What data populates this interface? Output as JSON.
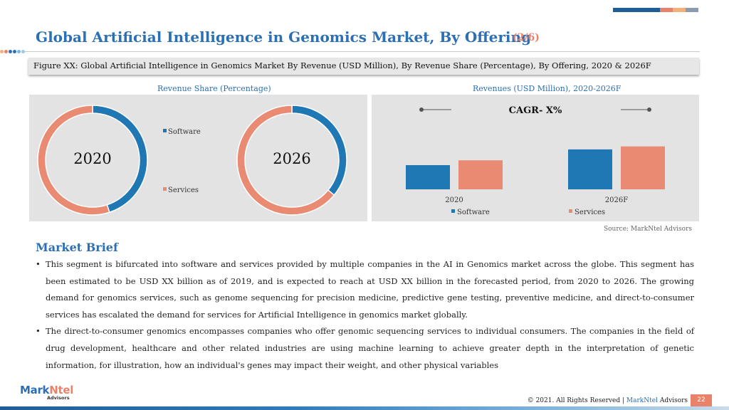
{
  "header": {
    "title": "Global Artificial Intelligence in Genomics Market, By Offering",
    "page_count": "(2/6)"
  },
  "colors": {
    "accent_blue": "#2c6fb3",
    "software": "#1f77b4",
    "services": "#e98a73",
    "panel_bg": "#e3e3e3",
    "top_bars": [
      "#1f5d99",
      "#e9826b",
      "#f3b07b",
      "#8a9bb0"
    ]
  },
  "figure_caption": "Figure XX: Global Artificial Intelligence in Genomics Market By Revenue (USD Million), By Revenue Share (Percentage), By Offering, 2020 & 2026F",
  "left_panel_title": "Revenue Share (Percentage)",
  "right_panel_title": "Revenues (USD Million), 2020-2026F",
  "chart_data": [
    {
      "type": "pie",
      "variant": "donut",
      "center_label": "2020",
      "labels": [
        "Software",
        "Services"
      ],
      "values": [
        45,
        55
      ],
      "legend_placement": "right"
    },
    {
      "type": "pie",
      "variant": "donut",
      "center_label": "2026",
      "labels": [
        "Software",
        "Services"
      ],
      "values": [
        36,
        64
      ]
    },
    {
      "type": "bar",
      "title": "CAGR- X%",
      "categories": [
        "2020",
        "2026F"
      ],
      "series": [
        {
          "name": "Software",
          "values": [
            40,
            66
          ]
        },
        {
          "name": "Services",
          "values": [
            48,
            71
          ]
        }
      ],
      "ylim": [
        0,
        100
      ],
      "grid": false,
      "legend_placement": "bottom"
    }
  ],
  "source": "Source: MarkNtel Advisors",
  "market_brief": {
    "heading": "Market Brief",
    "bullets": [
      "This segment is bifurcated into software and services provided by multiple companies in the AI in Genomics market across the globe. This segment has been estimated to be USD XX billion as of 2019, and is expected to reach at USD XX billion in the forecasted period, from 2020 to 2026. The growing demand for genomics services, such as genome sequencing for precision medicine, predictive gene testing, preventive medicine, and direct-to-consumer services has escalated the demand for services for Artificial Intelligence in genomics market globally.",
      "The direct-to-consumer genomics encompasses companies who offer genomic sequencing services to individual consumers. The companies in the field of drug development, healthcare and other related industries are using machine learning to achieve greater depth in the interpretation of genetic information, for illustration, how an individual's genes may impact their weight, and other physical variables"
    ]
  },
  "footer": {
    "logo_mark": "Mark",
    "logo_ntel": "Ntel",
    "logo_sub": "Advisors",
    "copyright": "© 2021. All Rights Reserved | ",
    "brand": "MarkNtel",
    "brand_suffix": " Advisors",
    "page_number": "22"
  }
}
